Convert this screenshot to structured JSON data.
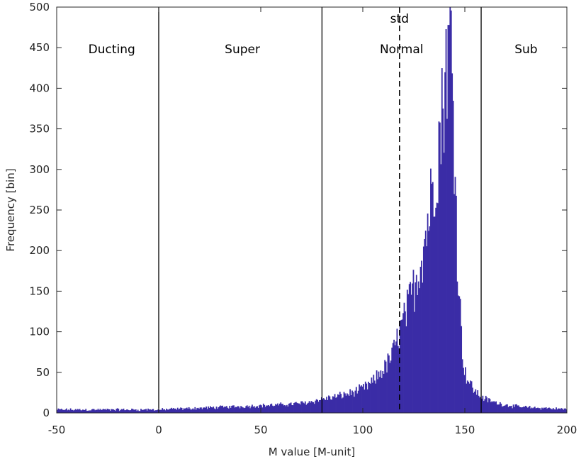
{
  "chart_data": {
    "type": "bar",
    "bar_color": "#3a2ca6",
    "xlabel": "M value [M-unit]",
    "ylabel": "Frequency [bin]",
    "xlim": [
      -50,
      200
    ],
    "ylim": [
      0,
      500
    ],
    "xticks": [
      -50,
      0,
      50,
      100,
      150,
      200
    ],
    "yticks": [
      0,
      50,
      100,
      150,
      200,
      250,
      300,
      350,
      400,
      450,
      500
    ],
    "grid": false,
    "bin_width": 0.5,
    "peak": {
      "x": 142,
      "y": 478
    },
    "series": [
      {
        "x": [
          -50,
          -40,
          -30,
          -20,
          -10,
          0,
          10,
          20,
          30,
          40,
          50,
          60,
          70,
          75,
          80,
          85,
          90,
          95,
          100,
          105,
          108,
          112,
          115,
          118,
          121,
          124,
          127,
          130,
          133,
          135,
          137,
          139,
          140,
          141,
          142,
          143,
          144,
          145,
          146,
          147,
          148,
          149,
          150,
          152,
          154,
          156,
          158,
          162,
          166,
          170,
          175,
          180,
          185,
          190,
          195,
          200
        ],
        "values": [
          4,
          4,
          4,
          4,
          4,
          4,
          5,
          6,
          7,
          8,
          9,
          10,
          12,
          14,
          17,
          19,
          22,
          25,
          30,
          38,
          48,
          60,
          75,
          100,
          120,
          145,
          175,
          210,
          255,
          295,
          330,
          370,
          410,
          440,
          470,
          465,
          400,
          320,
          220,
          160,
          110,
          70,
          50,
          38,
          30,
          24,
          20,
          15,
          12,
          10,
          8,
          7,
          6,
          6,
          5,
          5
        ]
      }
    ],
    "reference_lines": [
      {
        "x": 0,
        "style": "solid"
      },
      {
        "x": 80,
        "style": "solid"
      },
      {
        "x": 118,
        "style": "dashed",
        "label": "std"
      },
      {
        "x": 158,
        "style": "solid"
      }
    ],
    "annotations": [
      {
        "text": "Ducting",
        "x": -23
      },
      {
        "text": "Super",
        "x": 41
      },
      {
        "text": "Normal",
        "x": 119
      },
      {
        "text": "Sub",
        "x": 180
      }
    ]
  }
}
